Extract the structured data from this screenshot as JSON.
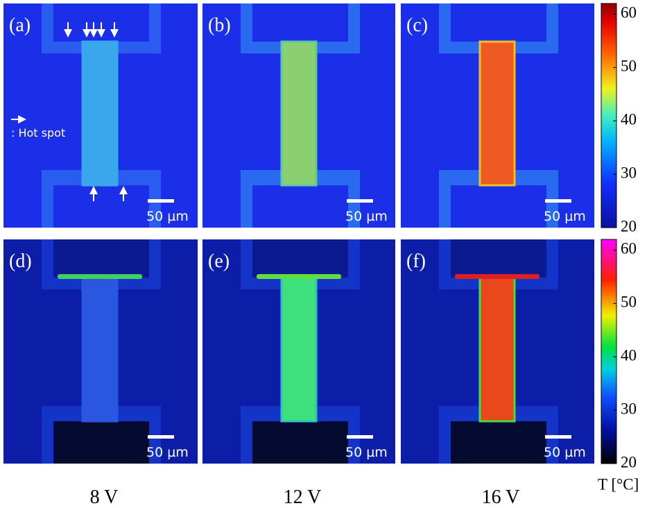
{
  "panels": [
    {
      "label": "(a)",
      "scale_bar": "50 µm"
    },
    {
      "label": "(b)",
      "scale_bar": "50 µm"
    },
    {
      "label": "(c)",
      "scale_bar": "50 µm"
    },
    {
      "label": "(d)",
      "scale_bar": "50 µm"
    },
    {
      "label": "(e)",
      "scale_bar": "50 µm"
    },
    {
      "label": "(f)",
      "scale_bar": "50 µm"
    }
  ],
  "annotation": ": Hot spot",
  "colorbars": [
    {
      "range": [
        20,
        62
      ],
      "ticks": [
        20,
        30,
        40,
        50,
        60
      ]
    },
    {
      "range": [
        20,
        62
      ],
      "ticks": [
        20,
        30,
        40,
        50,
        60
      ]
    }
  ],
  "colorbar_unit": "T [°C]",
  "voltages": [
    "8 V",
    "12 V",
    "16 V"
  ]
}
